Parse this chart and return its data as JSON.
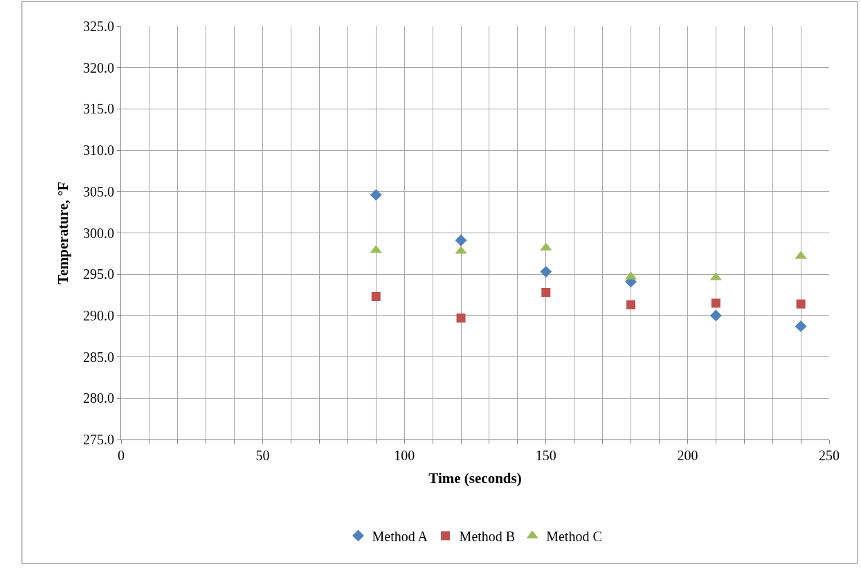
{
  "chart_data": {
    "type": "scatter",
    "xlabel": "Time (seconds)",
    "ylabel": "Temperature, °F",
    "x": [
      90,
      120,
      150,
      180,
      210,
      240
    ],
    "series": [
      {
        "name": "Method A",
        "color": "#4f81bd",
        "marker": "diamond",
        "values": [
          304.6,
          299.1,
          295.3,
          294.1,
          290.0,
          288.7
        ]
      },
      {
        "name": "Method B",
        "color": "#c0504d",
        "marker": "square",
        "values": [
          292.3,
          289.7,
          292.8,
          291.3,
          291.5,
          291.4
        ]
      },
      {
        "name": "Method C",
        "color": "#9bbb59",
        "marker": "triangle",
        "values": [
          297.9,
          297.8,
          298.2,
          294.7,
          294.6,
          297.2
        ]
      }
    ],
    "xlim": [
      0,
      250
    ],
    "xticks": [
      0,
      {
        "value": 10,
        "label": null
      },
      {
        "value": 20,
        "label": null
      },
      {
        "value": 30,
        "label": null
      },
      {
        "value": 40,
        "label": null
      },
      50,
      {
        "value": 60,
        "label": null
      },
      {
        "value": 70,
        "label": null
      },
      {
        "value": 80,
        "label": null
      },
      {
        "value": 90,
        "label": null
      },
      100,
      {
        "value": 110,
        "label": null
      },
      {
        "value": 120,
        "label": null
      },
      {
        "value": 130,
        "label": null
      },
      {
        "value": 140,
        "label": null
      },
      150,
      {
        "value": 160,
        "label": null
      },
      {
        "value": 170,
        "label": null
      },
      {
        "value": 180,
        "label": null
      },
      {
        "value": 190,
        "label": null
      },
      200,
      {
        "value": 210,
        "label": null
      },
      {
        "value": 220,
        "label": null
      },
      {
        "value": 230,
        "label": null
      },
      {
        "value": 240,
        "label": null
      },
      250
    ],
    "ylim": [
      275,
      325
    ],
    "yticks": [
      {
        "value": 275,
        "label": "275.0"
      },
      {
        "value": 280,
        "label": "280.0"
      },
      {
        "value": 285,
        "label": "285.0"
      },
      {
        "value": 290,
        "label": "290.0"
      },
      {
        "value": 295,
        "label": "295.0"
      },
      {
        "value": 300,
        "label": "300.0"
      },
      {
        "value": 305,
        "label": "305.0"
      },
      {
        "value": 310,
        "label": "310.0"
      },
      {
        "value": 315,
        "label": "315.0"
      },
      {
        "value": 320,
        "label": "320.0"
      },
      {
        "value": 325,
        "label": "325.0"
      }
    ],
    "grid": true,
    "legend": "bottom"
  }
}
